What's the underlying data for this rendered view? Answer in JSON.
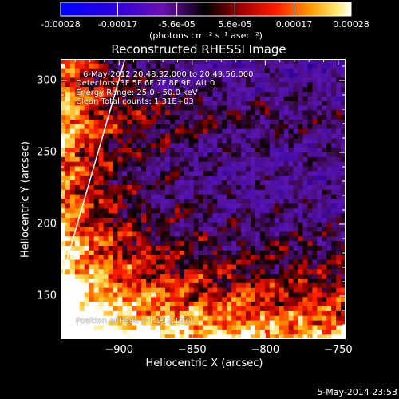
{
  "colorbar": {
    "ticks": [
      "-0.00028",
      "-0.00017",
      "-5.6e-05",
      "5.6e-05",
      "0.00017",
      "0.00028"
    ],
    "tick_values": [
      -0.00028,
      -0.00017,
      -5.6e-05,
      5.6e-05,
      0.00017,
      0.00028
    ],
    "units": "(photons cm⁻² s⁻¹ asec⁻²)",
    "range": [
      -0.00028,
      0.00028
    ]
  },
  "chart_data": {
    "type": "heatmap",
    "title": "Reconstructed RHESSI Image",
    "xlabel": "Heliocentric X (arcsec)",
    "ylabel": "Heliocentric Y (arcsec)",
    "xlim": [
      -940,
      -745
    ],
    "ylim": [
      120,
      315
    ],
    "x_ticks": [
      -900,
      -850,
      -800,
      -750
    ],
    "y_ticks": [
      150,
      200,
      250,
      300
    ],
    "x_tick_labels": [
      "−900",
      "−850",
      "−800",
      "−750"
    ],
    "y_tick_labels": [
      "150",
      "200",
      "250",
      "300"
    ],
    "limb_line": [
      [
        -940,
        160
      ],
      [
        -896,
        315
      ]
    ],
    "annotations": {
      "time_range": "6-May-2012 20:48:32.000 to 20:49:56.000",
      "detectors": "Detectors: 3F 5F 6F 7F 8F 9F, Att 0",
      "energy": "Energy Range: 25.0 - 50.0 keV",
      "clean": "Clean    Total counts: 1.31E+03",
      "peak": "Position of Peak = [-912,123]"
    }
  },
  "timestamp": "5-May-2014 23:53"
}
